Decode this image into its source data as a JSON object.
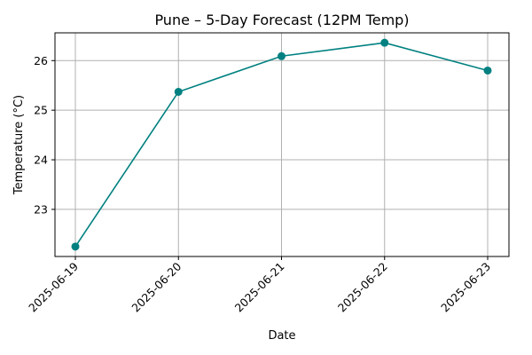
{
  "chart_data": {
    "type": "line",
    "title": "Pune – 5-Day Forecast (12PM Temp)",
    "xlabel": "Date",
    "ylabel": "Temperature (°C)",
    "categories": [
      "2025-06-19",
      "2025-06-20",
      "2025-06-21",
      "2025-06-22",
      "2025-06-23"
    ],
    "series": [
      {
        "values": [
          22.25,
          25.37,
          26.09,
          26.36,
          25.8
        ],
        "color": "#008080",
        "marker": "circle"
      }
    ],
    "yticks": [
      23,
      24,
      25,
      26
    ],
    "ylim": [
      22.05,
      26.56
    ],
    "grid": true,
    "legend": "none"
  }
}
